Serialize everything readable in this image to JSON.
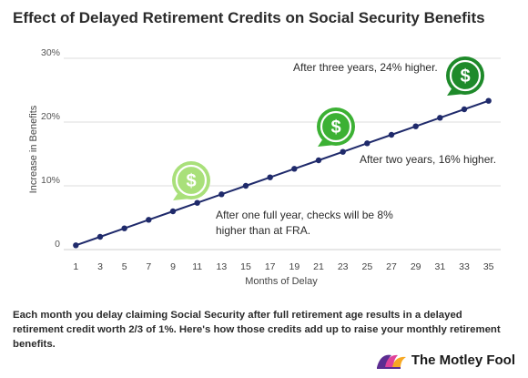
{
  "chart_data": {
    "type": "line",
    "title": "Effect of Delayed Retirement Credits on Social Security Benefits",
    "xlabel": "Months of Delay",
    "ylabel": "Increase in Benefits",
    "x_ticks": [
      1,
      3,
      5,
      7,
      9,
      11,
      13,
      15,
      17,
      19,
      21,
      23,
      25,
      27,
      29,
      31,
      33,
      35
    ],
    "y_ticks": [
      {
        "value": 0,
        "label": "0"
      },
      {
        "value": 10,
        "label": "10%"
      },
      {
        "value": 20,
        "label": "20%"
      },
      {
        "value": 30,
        "label": "30%"
      }
    ],
    "xlim": [
      0,
      36
    ],
    "ylim": [
      0,
      30
    ],
    "grid": true,
    "series": [
      {
        "color": "#1f2a6b",
        "x": [
          1,
          3,
          5,
          7,
          9,
          11,
          13,
          15,
          17,
          19,
          21,
          23,
          25,
          27,
          29,
          31,
          33,
          35
        ],
        "values": [
          0.67,
          2.0,
          3.33,
          4.67,
          6.0,
          7.33,
          8.67,
          10.0,
          11.33,
          12.67,
          14.0,
          15.33,
          16.67,
          18.0,
          19.33,
          20.67,
          22.0,
          23.33
        ]
      }
    ],
    "annotations": [
      {
        "text_lines": [
          "After one full year, checks will be 8%",
          "higher than at FRA."
        ],
        "icon": "dollar-badge-icon",
        "icon_color": "#a9e07a",
        "anchor_x": 11,
        "anchor_y": 7.33
      },
      {
        "text_lines": [
          "After two years, 16% higher."
        ],
        "icon": "dollar-badge-icon",
        "icon_color": "#3cb134",
        "anchor_x": 23,
        "anchor_y": 15.33
      },
      {
        "text_lines": [
          "After three years, 24% higher."
        ],
        "icon": "dollar-badge-icon",
        "icon_color": "#1e8a2a",
        "anchor_x": 35,
        "anchor_y": 23.33
      }
    ]
  },
  "caption": "Each month you delay claiming Social Security after full retirement age results in a delayed retirement credit worth 2/3 of 1%. Here's how those credits add up to raise your monthly retirement benefits.",
  "brand": {
    "name": "The Motley Fool",
    "logo_icon": "jester-hat-icon",
    "logo_colors": [
      "#5c2d91",
      "#e0429a",
      "#f7a823"
    ]
  }
}
